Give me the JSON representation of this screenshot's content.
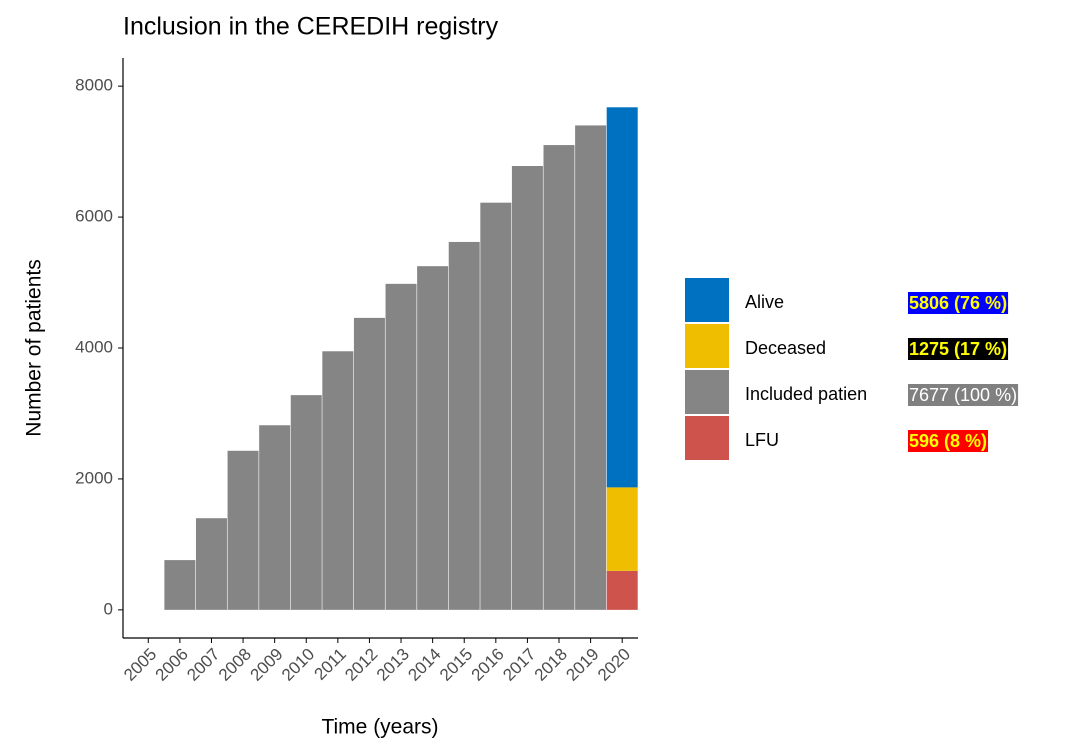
{
  "chart_data": {
    "type": "bar",
    "title": "Inclusion in the CEREDIH registry",
    "xlabel": "Time (years)",
    "ylabel": "Number of patients",
    "x": [
      2006,
      2007,
      2008,
      2009,
      2010,
      2011,
      2012,
      2013,
      2014,
      2015,
      2016,
      2017,
      2018,
      2019,
      2020
    ],
    "stacked": true,
    "series": [
      {
        "name": "Alive",
        "color": "#0070c0",
        "legend_label": "5806 (76 %)",
        "label_background": "#0000ff",
        "label_color": "#ffff00",
        "values": [
          null,
          null,
          null,
          null,
          null,
          null,
          null,
          null,
          null,
          null,
          null,
          null,
          null,
          null,
          5806
        ]
      },
      {
        "name": "Deceased",
        "color": "#f0be00",
        "legend_label": "1275 (17 %)",
        "label_background": "#000000",
        "label_color": "#ffff00",
        "values": [
          null,
          null,
          null,
          null,
          null,
          null,
          null,
          null,
          null,
          null,
          null,
          null,
          null,
          null,
          1275
        ]
      },
      {
        "name": "Included patien",
        "color": "#858585",
        "legend_label": "7677 (100 %)",
        "label_background": "#808080",
        "label_color": "#ffffff",
        "values": [
          760,
          1400,
          2430,
          2820,
          3280,
          3950,
          4460,
          4980,
          5250,
          5620,
          6220,
          6780,
          7100,
          7400,
          null
        ]
      },
      {
        "name": "LFU",
        "color": "#cd534c",
        "legend_label": "596 (8 %)",
        "label_background": "#ff0000",
        "label_color": "#ffff00",
        "values": [
          null,
          null,
          null,
          null,
          null,
          null,
          null,
          null,
          null,
          null,
          null,
          null,
          null,
          null,
          596
        ]
      }
    ],
    "stack_order": [
      3,
      1,
      0,
      2
    ],
    "xlim": [
      2004.2,
      2020.5
    ],
    "xticks": [
      2005,
      2006,
      2007,
      2008,
      2009,
      2010,
      2011,
      2012,
      2013,
      2014,
      2015,
      2016,
      2017,
      2018,
      2019,
      2020
    ],
    "ylim": [
      -430,
      8430
    ],
    "yticks": [
      0,
      2000,
      4000,
      6000,
      8000
    ],
    "grid": false
  }
}
